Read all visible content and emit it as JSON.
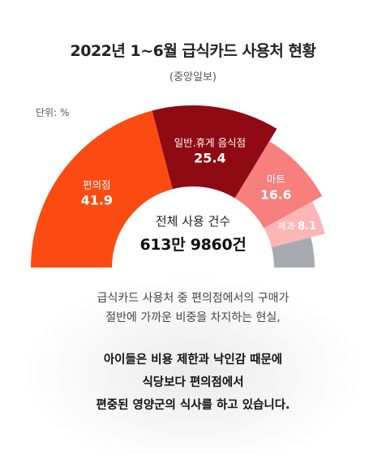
{
  "header": {
    "title": "2022년 1~6월 급식카드 사용처 현황",
    "source": "(중앙일보)",
    "unit": "단위: %"
  },
  "center": {
    "label": "전체 사용 건수",
    "value": "613만 9860건"
  },
  "caption": {
    "line1": "급식카드 사용처 중 편의점에서의 구매가",
    "line2": "절반에 가까운 비중을 차지하는 현실,"
  },
  "emphasis": {
    "line1": "아이들은 비용 제한과 낙인감 때문에",
    "line2": "식당보다 편의점에서",
    "line3": "편중된 영양군의 식사를 하고 있습니다."
  },
  "chart_data": {
    "type": "pie",
    "style": "half-donut",
    "categories": [
      "편의점",
      "일반.휴게 음식점",
      "마트",
      "제과",
      ""
    ],
    "values": [
      41.9,
      25.4,
      16.6,
      8.1,
      8.0
    ],
    "value_labels": [
      "41.9",
      "25.4",
      "16.6",
      "8.1",
      ""
    ],
    "colors": [
      "#fb4b12",
      "#8f0a13",
      "#f77f7e",
      "#fdb6b6",
      "#a7aab0"
    ]
  }
}
